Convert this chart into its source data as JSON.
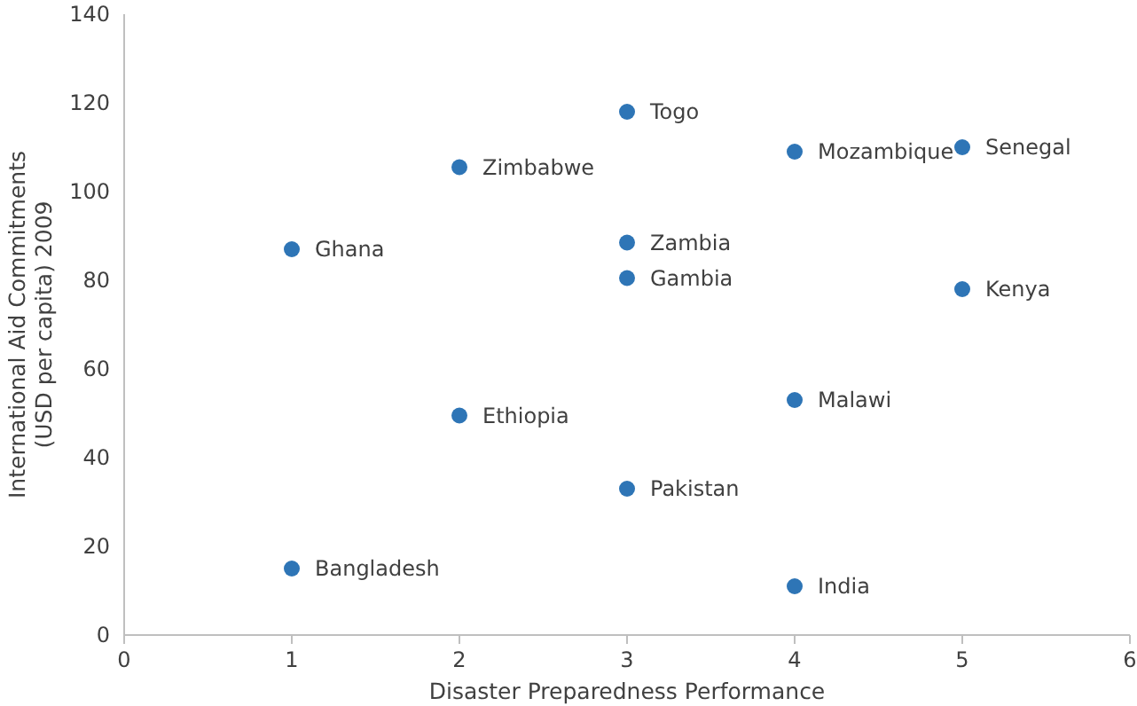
{
  "chart_data": {
    "type": "scatter",
    "xlabel": "Disaster Preparedness Performance",
    "ylabel": "International Aid Commitments (USD per capita) 2009",
    "x": [
      3,
      2,
      4,
      5,
      1,
      3,
      3,
      5,
      2,
      4,
      3,
      1,
      4
    ],
    "series": [
      {
        "color": "#2e75b6",
        "values": [
          118,
          105.5,
          109,
          110,
          87,
          88.5,
          80.5,
          78,
          49.5,
          53,
          33,
          15,
          11
        ]
      }
    ],
    "annotations": [
      {
        "text": "Togo",
        "x": 3,
        "y": 118
      },
      {
        "text": "Zimbabwe",
        "x": 2,
        "y": 105.5
      },
      {
        "text": "Mozambique",
        "x": 4,
        "y": 109
      },
      {
        "text": "Senegal",
        "x": 5,
        "y": 110
      },
      {
        "text": "Ghana",
        "x": 1,
        "y": 87
      },
      {
        "text": "Zambia",
        "x": 3,
        "y": 88.5
      },
      {
        "text": "Gambia",
        "x": 3,
        "y": 80.5
      },
      {
        "text": "Kenya",
        "x": 5,
        "y": 78
      },
      {
        "text": "Ethiopia",
        "x": 2,
        "y": 49.5
      },
      {
        "text": "Malawi",
        "x": 4,
        "y": 53
      },
      {
        "text": "Pakistan",
        "x": 3,
        "y": 33
      },
      {
        "text": "Bangladesh",
        "x": 1,
        "y": 15
      },
      {
        "text": "India",
        "x": 4,
        "y": 11
      }
    ],
    "xlim": [
      0,
      6
    ],
    "xticks": [
      0,
      1,
      2,
      3,
      4,
      5,
      6
    ],
    "ylim": [
      0,
      140
    ],
    "yticks": [
      0,
      20,
      40,
      60,
      80,
      100,
      120,
      140
    ],
    "grid": false,
    "marker": "circle"
  }
}
